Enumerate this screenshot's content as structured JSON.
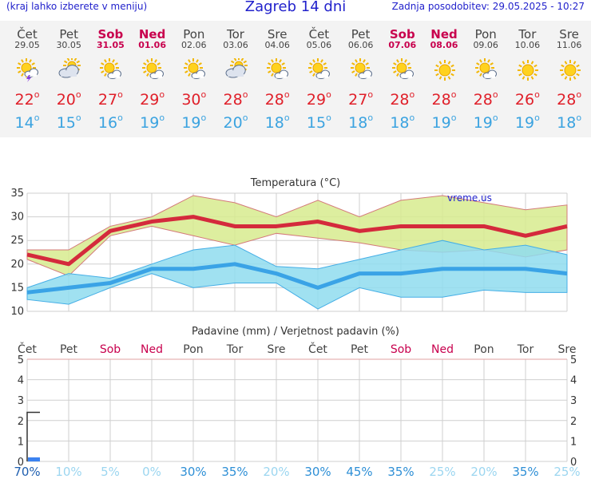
{
  "header": {
    "menu_hint": "(kraj lahko izberete v meniju)",
    "title": "Zagreb 14 dni",
    "last_update": "Zadnja posodobitev: 29.05.2025 - 10:27"
  },
  "days": [
    {
      "name": "Čet",
      "date": "29.05",
      "weekend": false,
      "icon": "sun-cloud-thunder-icon",
      "tmax": "22",
      "tmin": "14"
    },
    {
      "name": "Pet",
      "date": "30.05",
      "weekend": false,
      "icon": "cloudy-sun-icon",
      "tmax": "20",
      "tmin": "15"
    },
    {
      "name": "Sob",
      "date": "31.05",
      "weekend": true,
      "icon": "sun-cloud-icon",
      "tmax": "27",
      "tmin": "16"
    },
    {
      "name": "Ned",
      "date": "01.06",
      "weekend": true,
      "icon": "sun-cloud-icon",
      "tmax": "29",
      "tmin": "19"
    },
    {
      "name": "Pon",
      "date": "02.06",
      "weekend": false,
      "icon": "sun-cloud-icon",
      "tmax": "30",
      "tmin": "19"
    },
    {
      "name": "Tor",
      "date": "03.06",
      "weekend": false,
      "icon": "cloudy-sun-icon",
      "tmax": "28",
      "tmin": "20"
    },
    {
      "name": "Sre",
      "date": "04.06",
      "weekend": false,
      "icon": "sun-cloud-icon",
      "tmax": "28",
      "tmin": "18"
    },
    {
      "name": "Čet",
      "date": "05.06",
      "weekend": false,
      "icon": "sun-cloud-icon",
      "tmax": "29",
      "tmin": "15"
    },
    {
      "name": "Pet",
      "date": "06.06",
      "weekend": false,
      "icon": "sun-cloud-icon",
      "tmax": "27",
      "tmin": "18"
    },
    {
      "name": "Sob",
      "date": "07.06",
      "weekend": true,
      "icon": "sun-cloud-icon",
      "tmax": "28",
      "tmin": "18"
    },
    {
      "name": "Ned",
      "date": "08.06",
      "weekend": true,
      "icon": "sun-icon",
      "tmax": "28",
      "tmin": "19"
    },
    {
      "name": "Pon",
      "date": "09.06",
      "weekend": false,
      "icon": "sun-cloud-icon",
      "tmax": "28",
      "tmin": "19"
    },
    {
      "name": "Tor",
      "date": "10.06",
      "weekend": false,
      "icon": "sun-icon",
      "tmax": "26",
      "tmin": "19"
    },
    {
      "name": "Sre",
      "date": "11.06",
      "weekend": false,
      "icon": "sun-icon",
      "tmax": "28",
      "tmin": "18"
    }
  ],
  "colors": {
    "title": "#2222cc",
    "weekend": "#c8004d",
    "tmax": "#e0202a",
    "tmin": "#3ba3e0",
    "max_band": "#d7eb8e",
    "min_band": "#8fdcef",
    "precip_bar": "#3b82f0"
  },
  "chart_data": [
    {
      "type": "line",
      "title": "Temperatura (°C)",
      "watermark": "vreme.us",
      "x": [
        "29.05",
        "30.05",
        "31.05",
        "01.06",
        "02.06",
        "03.06",
        "04.06",
        "05.06",
        "06.06",
        "07.06",
        "08.06",
        "09.06",
        "10.06",
        "11.06"
      ],
      "ylim": [
        10,
        35
      ],
      "yticks": [
        10,
        15,
        20,
        25,
        30,
        35
      ],
      "grid": true,
      "series": [
        {
          "values": [
            22,
            20,
            27,
            29,
            30,
            28,
            28,
            29,
            27,
            28,
            28,
            28,
            26,
            28
          ]
        },
        {
          "values": [
            14,
            15,
            16,
            19,
            19,
            20,
            18,
            15,
            18,
            18,
            19,
            19,
            19,
            18
          ]
        }
      ],
      "bands": [
        {
          "upper": [
            23,
            23,
            28,
            30,
            34.5,
            33,
            30,
            33.5,
            30,
            33.5,
            34.5,
            33,
            31.5,
            32.5
          ],
          "lower": [
            21,
            17.5,
            26,
            28,
            26,
            24,
            26.5,
            25.5,
            24.5,
            23,
            22.5,
            23,
            21.5,
            23
          ]
        },
        {
          "upper": [
            15,
            18,
            17,
            20,
            23,
            24,
            19.5,
            19,
            21,
            23,
            25,
            23,
            24,
            22
          ],
          "lower": [
            12.5,
            11.5,
            15,
            18,
            15,
            16,
            16,
            10.5,
            15,
            13,
            13,
            14.5,
            14,
            14
          ]
        }
      ]
    },
    {
      "type": "bar",
      "title": "Padavine (mm) / Verjetnost padavin (%)",
      "categories": [
        "Čet",
        "Pet",
        "Sob",
        "Ned",
        "Pon",
        "Tor",
        "Sre",
        "Čet",
        "Pet",
        "Sob",
        "Ned",
        "Pon",
        "Tor",
        "Sre"
      ],
      "weekend": [
        false,
        false,
        true,
        true,
        false,
        false,
        false,
        false,
        false,
        true,
        true,
        false,
        false,
        false
      ],
      "ylim": [
        0,
        5
      ],
      "yticks": [
        0,
        1,
        2,
        3,
        4,
        5
      ],
      "grid": true,
      "values": [
        0.2,
        0,
        0,
        0,
        0,
        0,
        0,
        0,
        0,
        0,
        0,
        0,
        0,
        0
      ],
      "range_max": [
        2.4,
        0,
        0,
        0,
        0,
        0,
        0,
        0,
        0,
        0,
        0,
        0,
        0,
        0
      ],
      "probability": [
        "70%",
        "10%",
        "5%",
        "0%",
        "30%",
        "35%",
        "20%",
        "30%",
        "45%",
        "35%",
        "25%",
        "20%",
        "35%",
        "25%"
      ],
      "probability_values": [
        70,
        10,
        5,
        0,
        30,
        35,
        20,
        30,
        45,
        35,
        25,
        20,
        35,
        25
      ]
    }
  ]
}
